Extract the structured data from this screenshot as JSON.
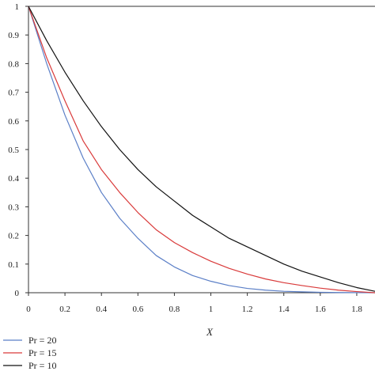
{
  "chart_data": {
    "type": "line",
    "xlabel": "X",
    "ylabel": "",
    "xlim": [
      0,
      1.9
    ],
    "ylim": [
      0,
      1
    ],
    "xticks": [
      "0",
      "0.2",
      "0.4",
      "0.6",
      "0.8",
      "1",
      "1.2",
      "1.4",
      "1.6",
      "1.8"
    ],
    "yticks": [
      "0",
      "0.1",
      "0.2",
      "0.3",
      "0.4",
      "0.5",
      "0.6",
      "0.7",
      "0.8",
      "0.9",
      "1"
    ],
    "grid": false,
    "legend_position": "bottom-left",
    "series": [
      {
        "name": "Pr = 20",
        "color": "#5b7fc7",
        "x": [
          0,
          0.1,
          0.2,
          0.3,
          0.4,
          0.5,
          0.6,
          0.7,
          0.8,
          0.9,
          1.0,
          1.1,
          1.2,
          1.3,
          1.4,
          1.5,
          1.6,
          1.7,
          1.8,
          1.9
        ],
        "y": [
          1.0,
          0.8,
          0.62,
          0.47,
          0.35,
          0.26,
          0.19,
          0.13,
          0.09,
          0.06,
          0.04,
          0.025,
          0.015,
          0.009,
          0.005,
          0.003,
          0.0015,
          0.0007,
          0.0003,
          0.0
        ]
      },
      {
        "name": "Pr = 15",
        "color": "#d93a3a",
        "x": [
          0,
          0.1,
          0.2,
          0.3,
          0.4,
          0.5,
          0.6,
          0.7,
          0.8,
          0.9,
          1.0,
          1.1,
          1.2,
          1.3,
          1.4,
          1.5,
          1.6,
          1.7,
          1.8,
          1.9
        ],
        "y": [
          1.0,
          0.82,
          0.67,
          0.53,
          0.43,
          0.35,
          0.28,
          0.22,
          0.175,
          0.14,
          0.11,
          0.085,
          0.065,
          0.048,
          0.035,
          0.025,
          0.016,
          0.009,
          0.004,
          0.0
        ]
      },
      {
        "name": "Pr = 10",
        "color": "#111111",
        "x": [
          0,
          0.1,
          0.2,
          0.3,
          0.4,
          0.5,
          0.6,
          0.7,
          0.8,
          0.9,
          1.0,
          1.1,
          1.2,
          1.3,
          1.4,
          1.5,
          1.6,
          1.7,
          1.8,
          1.9
        ],
        "y": [
          1.0,
          0.88,
          0.77,
          0.67,
          0.58,
          0.5,
          0.43,
          0.37,
          0.32,
          0.27,
          0.23,
          0.19,
          0.16,
          0.13,
          0.1,
          0.075,
          0.055,
          0.035,
          0.018,
          0.005
        ]
      }
    ]
  }
}
